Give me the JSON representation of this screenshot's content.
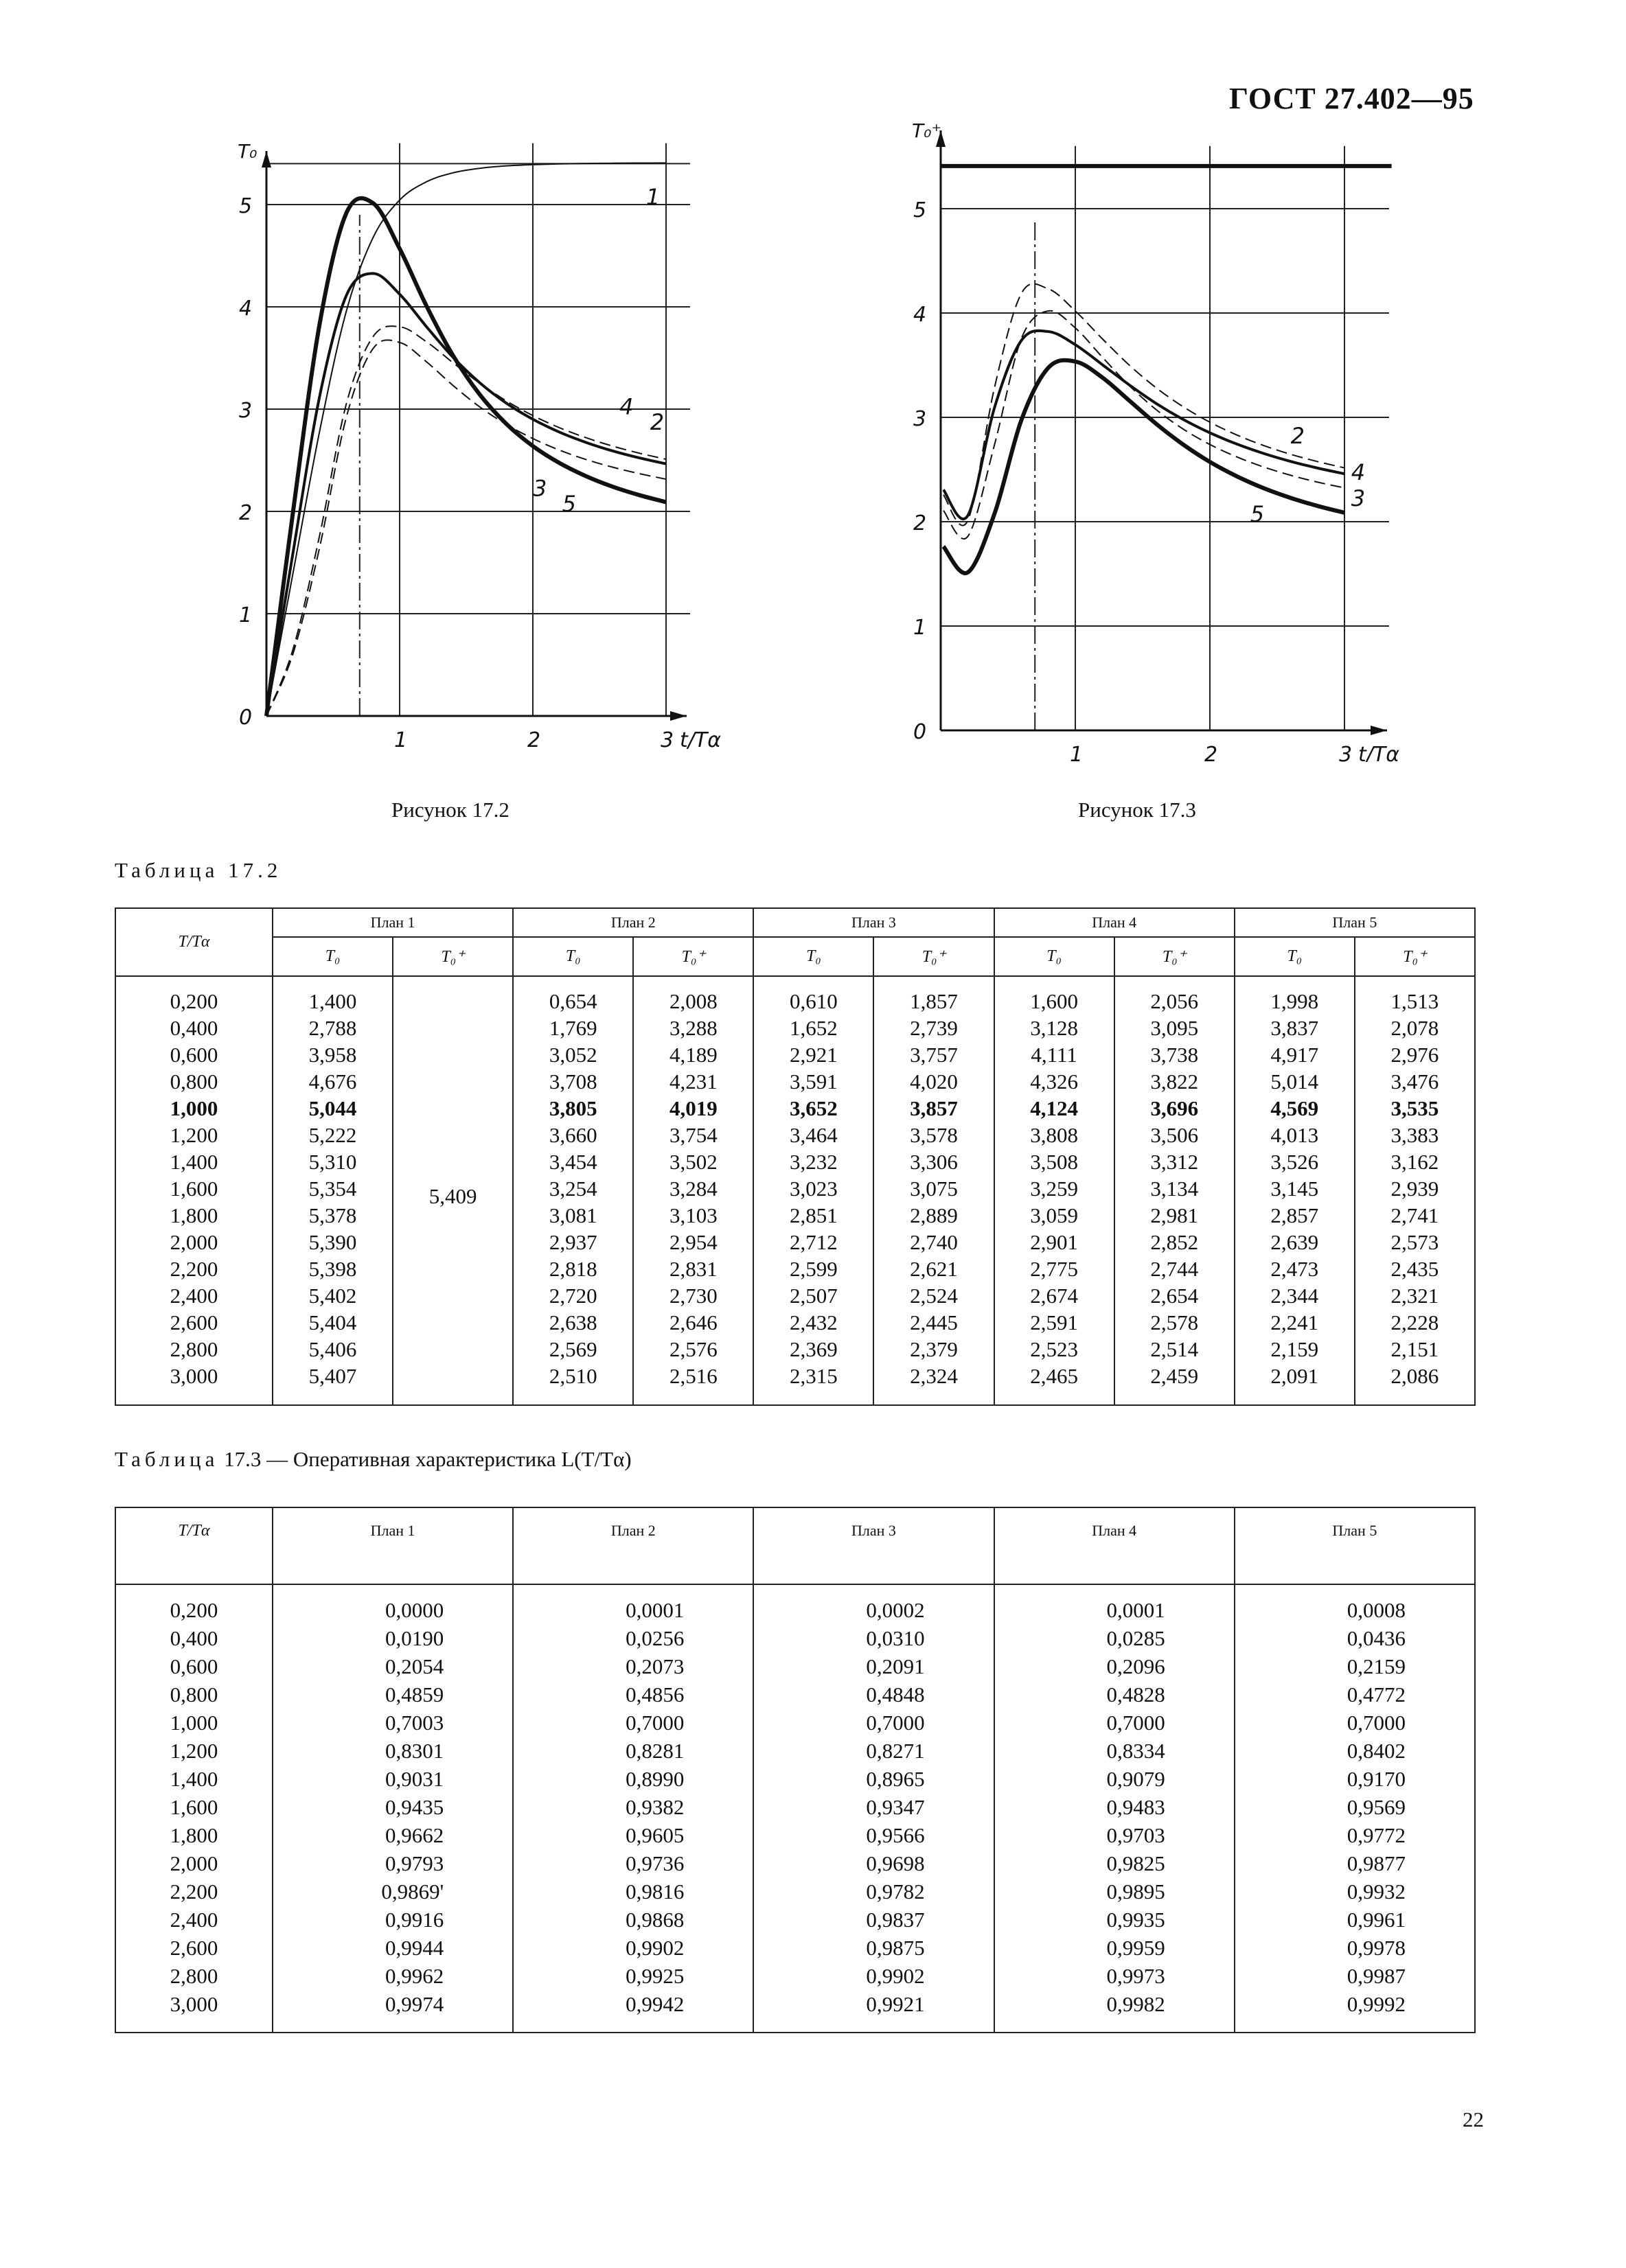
{
  "header": {
    "doc_code": "ГОСТ 27.402—95"
  },
  "figures": [
    {
      "caption": "Рисунок 17.2"
    },
    {
      "caption": "Рисунок 17.3"
    }
  ],
  "chart_data": [
    {
      "type": "line",
      "title": "",
      "ylabel": "T₀",
      "xlabel": "t/Tα",
      "xlim": [
        0,
        3.2
      ],
      "ylim": [
        0,
        5.6
      ],
      "x_ticks": [
        "1",
        "2",
        "3"
      ],
      "y_ticks": [
        "0",
        "1",
        "2",
        "3",
        "4",
        "5"
      ],
      "grid": true,
      "x": [
        0.2,
        0.4,
        0.6,
        0.8,
        1.0,
        1.2,
        1.4,
        1.6,
        1.8,
        2.0,
        2.2,
        2.4,
        2.6,
        2.8,
        3.0
      ],
      "series": [
        {
          "name": "1",
          "style": "thin-solid",
          "values": [
            1.4,
            2.788,
            3.958,
            4.676,
            5.044,
            5.222,
            5.31,
            5.354,
            5.378,
            5.39,
            5.398,
            5.402,
            5.404,
            5.406,
            5.407
          ]
        },
        {
          "name": "2",
          "style": "dashed",
          "values": [
            0.654,
            1.769,
            3.052,
            3.708,
            3.805,
            3.66,
            3.454,
            3.254,
            3.081,
            2.937,
            2.818,
            2.72,
            2.638,
            2.569,
            2.51
          ]
        },
        {
          "name": "3",
          "style": "dashed",
          "values": [
            0.61,
            1.652,
            2.921,
            3.591,
            3.652,
            3.464,
            3.232,
            3.023,
            2.851,
            2.712,
            2.599,
            2.507,
            2.432,
            2.369,
            2.315
          ]
        },
        {
          "name": "4",
          "style": "solid",
          "values": [
            1.6,
            3.128,
            4.111,
            4.326,
            4.124,
            3.808,
            3.508,
            3.259,
            3.059,
            2.901,
            2.775,
            2.674,
            2.591,
            2.523,
            2.465
          ]
        },
        {
          "name": "5",
          "style": "thick-solid",
          "values": [
            1.998,
            3.837,
            4.917,
            5.014,
            4.569,
            4.013,
            3.526,
            3.145,
            2.857,
            2.639,
            2.473,
            2.344,
            2.241,
            2.159,
            2.091
          ]
        }
      ]
    },
    {
      "type": "line",
      "title": "",
      "ylabel": "T₀⁺",
      "xlabel": "t/Tα",
      "xlim": [
        0,
        3.2
      ],
      "ylim": [
        0,
        5.6
      ],
      "x_ticks": [
        "1",
        "2",
        "3"
      ],
      "y_ticks": [
        "0",
        "1",
        "2",
        "3",
        "4",
        "5"
      ],
      "grid": true,
      "x": [
        0.2,
        0.4,
        0.6,
        0.8,
        1.0,
        1.2,
        1.4,
        1.6,
        1.8,
        2.0,
        2.2,
        2.4,
        2.6,
        2.8,
        3.0
      ],
      "series": [
        {
          "name": "1",
          "style": "thick-solid",
          "values": [
            5.409,
            5.409,
            5.409,
            5.409,
            5.409,
            5.409,
            5.409,
            5.409,
            5.409,
            5.409,
            5.409,
            5.409,
            5.409,
            5.409,
            5.409
          ]
        },
        {
          "name": "2",
          "style": "dashed",
          "values": [
            2.008,
            3.288,
            4.189,
            4.231,
            4.019,
            3.754,
            3.502,
            3.284,
            3.103,
            2.954,
            2.831,
            2.73,
            2.646,
            2.576,
            2.516
          ]
        },
        {
          "name": "3",
          "style": "dashed",
          "values": [
            1.857,
            2.739,
            3.757,
            4.02,
            3.857,
            3.578,
            3.306,
            3.075,
            2.889,
            2.74,
            2.621,
            2.524,
            2.445,
            2.379,
            2.324
          ]
        },
        {
          "name": "4",
          "style": "solid",
          "values": [
            2.056,
            3.095,
            3.738,
            3.822,
            3.696,
            3.506,
            3.312,
            3.134,
            2.981,
            2.852,
            2.744,
            2.654,
            2.578,
            2.514,
            2.459
          ]
        },
        {
          "name": "5",
          "style": "thick-solid",
          "values": [
            1.513,
            2.078,
            2.976,
            3.476,
            3.535,
            3.383,
            3.162,
            2.939,
            2.741,
            2.573,
            2.435,
            2.321,
            2.228,
            2.151,
            2.086
          ]
        }
      ]
    }
  ],
  "table_17_2": {
    "title": "Таблица 17.2",
    "col_first": "T/Tα",
    "plans": [
      "План 1",
      "План 2",
      "План 3",
      "План 4",
      "План 5"
    ],
    "sub_t0": "T₀",
    "sub_t0plus": "T₀⁺",
    "plan1_t0plus_merged": "5,409",
    "bold_row": 4,
    "rows": [
      [
        "0,200",
        "1,400",
        "0,654",
        "2,008",
        "0,610",
        "1,857",
        "1,600",
        "2,056",
        "1,998",
        "1,513"
      ],
      [
        "0,400",
        "2,788",
        "1,769",
        "3,288",
        "1,652",
        "2,739",
        "3,128",
        "3,095",
        "3,837",
        "2,078"
      ],
      [
        "0,600",
        "3,958",
        "3,052",
        "4,189",
        "2,921",
        "3,757",
        "4,111",
        "3,738",
        "4,917",
        "2,976"
      ],
      [
        "0,800",
        "4,676",
        "3,708",
        "4,231",
        "3,591",
        "4,020",
        "4,326",
        "3,822",
        "5,014",
        "3,476"
      ],
      [
        "1,000",
        "5,044",
        "3,805",
        "4,019",
        "3,652",
        "3,857",
        "4,124",
        "3,696",
        "4,569",
        "3,535"
      ],
      [
        "1,200",
        "5,222",
        "3,660",
        "3,754",
        "3,464",
        "3,578",
        "3,808",
        "3,506",
        "4,013",
        "3,383"
      ],
      [
        "1,400",
        "5,310",
        "3,454",
        "3,502",
        "3,232",
        "3,306",
        "3,508",
        "3,312",
        "3,526",
        "3,162"
      ],
      [
        "1,600",
        "5,354",
        "3,254",
        "3,284",
        "3,023",
        "3,075",
        "3,259",
        "3,134",
        "3,145",
        "2,939"
      ],
      [
        "1,800",
        "5,378",
        "3,081",
        "3,103",
        "2,851",
        "2,889",
        "3,059",
        "2,981",
        "2,857",
        "2,741"
      ],
      [
        "2,000",
        "5,390",
        "2,937",
        "2,954",
        "2,712",
        "2,740",
        "2,901",
        "2,852",
        "2,639",
        "2,573"
      ],
      [
        "2,200",
        "5,398",
        "2,818",
        "2,831",
        "2,599",
        "2,621",
        "2,775",
        "2,744",
        "2,473",
        "2,435"
      ],
      [
        "2,400",
        "5,402",
        "2,720",
        "2,730",
        "2,507",
        "2,524",
        "2,674",
        "2,654",
        "2,344",
        "2,321"
      ],
      [
        "2,600",
        "5,404",
        "2,638",
        "2,646",
        "2,432",
        "2,445",
        "2,591",
        "2,578",
        "2,241",
        "2,228"
      ],
      [
        "2,800",
        "5,406",
        "2,569",
        "2,576",
        "2,369",
        "2,379",
        "2,523",
        "2,514",
        "2,159",
        "2,151"
      ],
      [
        "3,000",
        "5,407",
        "2,510",
        "2,516",
        "2,315",
        "2,324",
        "2,465",
        "2,459",
        "2,091",
        "2,086"
      ]
    ]
  },
  "table_17_3": {
    "title_prefix": "Таблица",
    "title_rest": "17.3 — Оперативная характеристика L(T/Tα)",
    "col_first": "T/Tα",
    "plans": [
      "План 1",
      "План 2",
      "План 3",
      "План 4",
      "План 5"
    ],
    "rows": [
      [
        "0,200",
        "0,0000",
        "0,0001",
        "0,0002",
        "0,0001",
        "0,0008"
      ],
      [
        "0,400",
        "0,0190",
        "0,0256",
        "0,0310",
        "0,0285",
        "0,0436"
      ],
      [
        "0,600",
        "0,2054",
        "0,2073",
        "0,2091",
        "0,2096",
        "0,2159"
      ],
      [
        "0,800",
        "0,4859",
        "0,4856",
        "0,4848",
        "0,4828",
        "0,4772"
      ],
      [
        "1,000",
        "0,7003",
        "0,7000",
        "0,7000",
        "0,7000",
        "0,7000"
      ],
      [
        "1,200",
        "0,8301",
        "0,8281",
        "0,8271",
        "0,8334",
        "0,8402"
      ],
      [
        "1,400",
        "0,9031",
        "0,8990",
        "0,8965",
        "0,9079",
        "0,9170"
      ],
      [
        "1,600",
        "0,9435",
        "0,9382",
        "0,9347",
        "0,9483",
        "0,9569"
      ],
      [
        "1,800",
        "0,9662",
        "0,9605",
        "0,9566",
        "0,9703",
        "0,9772"
      ],
      [
        "2,000",
        "0,9793",
        "0,9736",
        "0,9698",
        "0,9825",
        "0,9877"
      ],
      [
        "2,200",
        "0,9869'",
        "0,9816",
        "0,9782",
        "0,9895",
        "0,9932"
      ],
      [
        "2,400",
        "0,9916",
        "0,9868",
        "0,9837",
        "0,9935",
        "0,9961"
      ],
      [
        "2,600",
        "0,9944",
        "0,9902",
        "0,9875",
        "0,9959",
        "0,9978"
      ],
      [
        "2,800",
        "0,9962",
        "0,9925",
        "0,9902",
        "0,9973",
        "0,9987"
      ],
      [
        "3,000",
        "0,9974",
        "0,9942",
        "0,9921",
        "0,9982",
        "0,9992"
      ]
    ]
  },
  "page_number": "22"
}
